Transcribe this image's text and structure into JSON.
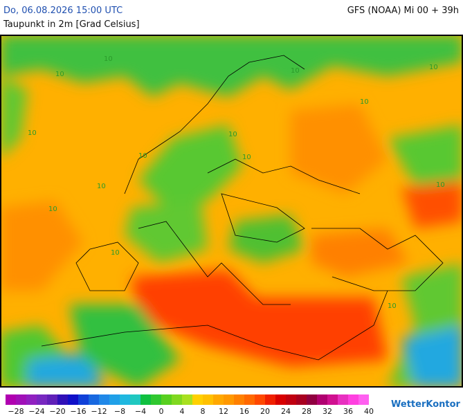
{
  "header": {
    "datetime": "Do, 06.08.2026 15:00 UTC",
    "model": "GFS (NOAA) Mi 00 + 39h",
    "variable": "Taupunkt in 2m [Grad Celsius]"
  },
  "map": {
    "contour_labels": [
      "10",
      "10",
      "10",
      "10",
      "10",
      "10",
      "10",
      "10",
      "10",
      "10",
      "10",
      "10",
      "10",
      "10"
    ]
  },
  "legend": {
    "labels": [
      "−28",
      "−24",
      "−20",
      "−16",
      "−12",
      "−8",
      "−4",
      "0",
      "4",
      "8",
      "12",
      "16",
      "20",
      "24",
      "28",
      "32",
      "36",
      "40"
    ],
    "colors": [
      "#b000b0",
      "#a010b8",
      "#9020c0",
      "#7828c0",
      "#6020b8",
      "#3010b8",
      "#1010c8",
      "#1040d8",
      "#1868e0",
      "#2088e8",
      "#20a0e8",
      "#20b8e0",
      "#20c8c0",
      "#10c040",
      "#30c830",
      "#58d020",
      "#80d820",
      "#a8e020",
      "#ffd000",
      "#ffc000",
      "#ffa800",
      "#ff9800",
      "#ff8000",
      "#ff6800",
      "#ff4800",
      "#f02000",
      "#d80000",
      "#c00010",
      "#a80020",
      "#900040",
      "#b00070",
      "#d01090",
      "#e830c0",
      "#ff40e0",
      "#ff60f0"
    ],
    "brand": "WetterKontor"
  }
}
